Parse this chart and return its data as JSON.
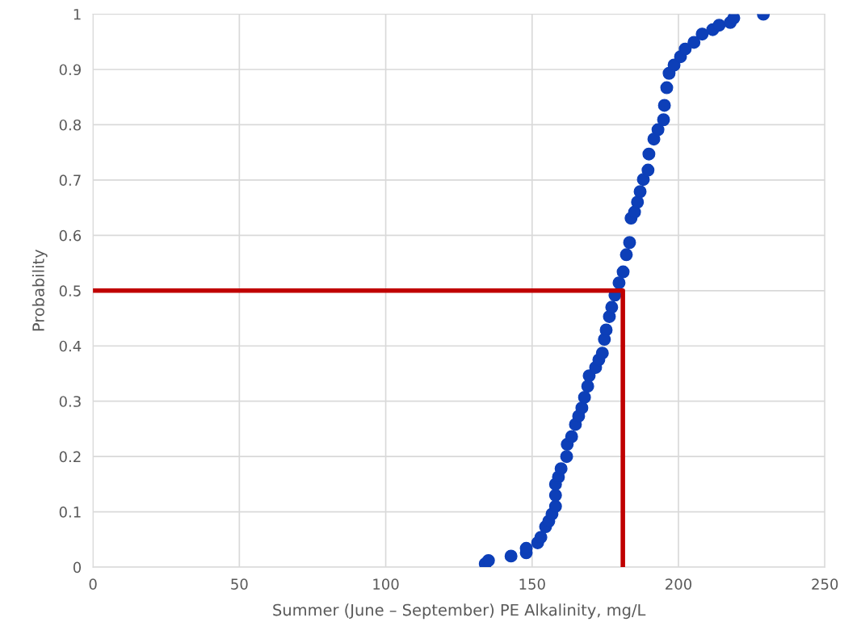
{
  "chart_data": {
    "type": "scatter",
    "xlabel": "Summer (June – September) PE Alkalinity, mg/L",
    "ylabel": "Probability",
    "xlim": [
      0,
      250
    ],
    "xticks": [
      0,
      50,
      100,
      150,
      200,
      250
    ],
    "ylim": [
      0,
      1
    ],
    "yticks": [
      0,
      0.1,
      0.2,
      0.3,
      0.4,
      0.5,
      0.6,
      0.7,
      0.8,
      0.9,
      1
    ],
    "grid": true,
    "series": [
      {
        "marker": "circle",
        "color": "#0d3fb8",
        "x": [
          134.0,
          135.1,
          142.8,
          148.0,
          148.0,
          151.9,
          153.0,
          154.6,
          155.7,
          156.8,
          158.0,
          158.0,
          158.0,
          159.0,
          159.9,
          161.8,
          162.0,
          163.5,
          164.8,
          165.9,
          167.0,
          167.9,
          169.0,
          169.5,
          171.7,
          172.8,
          174.0,
          174.7,
          175.3,
          176.4,
          177.2,
          178.3,
          179.7,
          181.1,
          182.2,
          183.3,
          183.8,
          185.0,
          186.0,
          186.9,
          188.0,
          189.6,
          189.9,
          191.6,
          193.0,
          194.9,
          195.2,
          196.0,
          196.8,
          198.5,
          200.7,
          202.3,
          205.3,
          208.1,
          211.7,
          213.9,
          217.7,
          218.9,
          229.0
        ],
        "values": [
          0.006,
          0.012,
          0.02,
          0.026,
          0.034,
          0.044,
          0.054,
          0.073,
          0.083,
          0.096,
          0.11,
          0.13,
          0.15,
          0.163,
          0.178,
          0.2,
          0.222,
          0.236,
          0.258,
          0.273,
          0.288,
          0.307,
          0.327,
          0.346,
          0.361,
          0.375,
          0.387,
          0.412,
          0.429,
          0.453,
          0.47,
          0.492,
          0.514,
          0.534,
          0.565,
          0.587,
          0.631,
          0.642,
          0.66,
          0.679,
          0.701,
          0.718,
          0.747,
          0.774,
          0.791,
          0.809,
          0.835,
          0.867,
          0.893,
          0.908,
          0.923,
          0.937,
          0.949,
          0.964,
          0.972,
          0.98,
          0.985,
          0.993,
          1.0
        ]
      },
      {
        "type": "line",
        "color": "#c00000",
        "marker": "none",
        "line_style": "solid",
        "x": [
          0,
          181,
          181
        ],
        "values": [
          0.5,
          0.5,
          0
        ]
      }
    ]
  }
}
